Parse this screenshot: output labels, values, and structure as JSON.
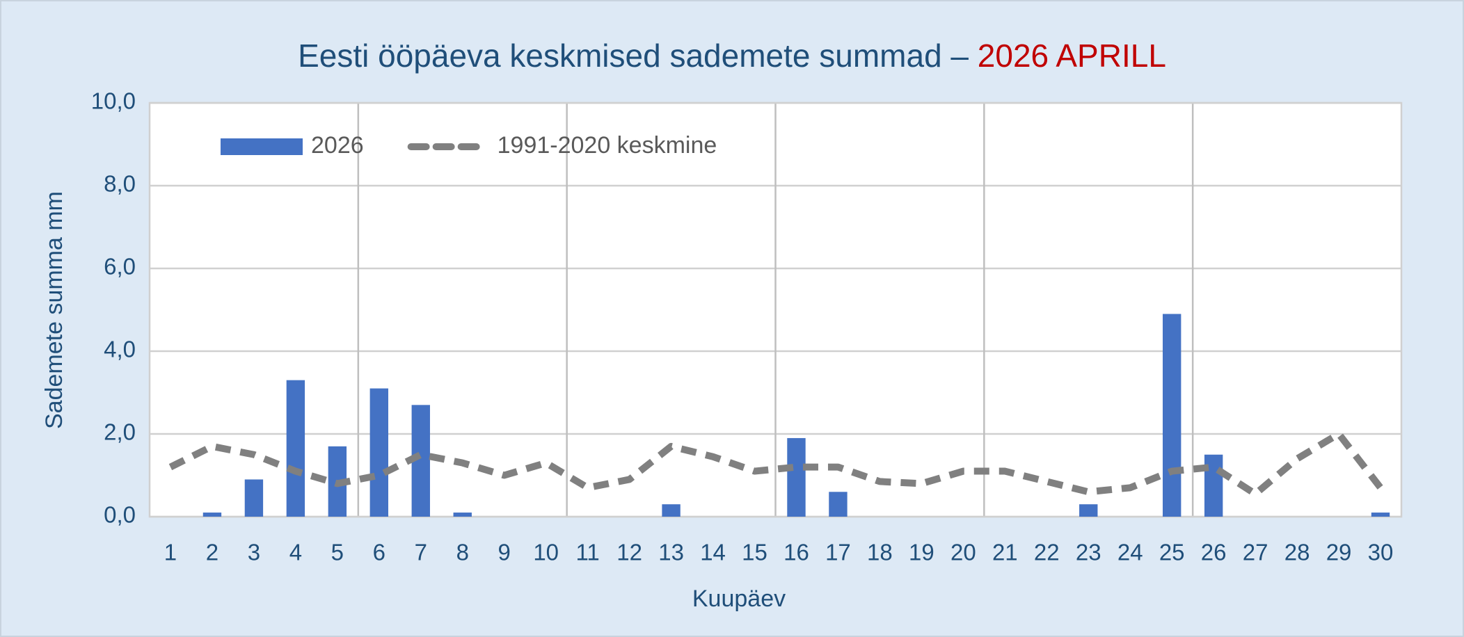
{
  "chart_data": {
    "type": "bar",
    "title": "Eesti ööpäeva keskmised sademete summad –",
    "title_highlight": "2026 APRILL",
    "x_label": "Kuupäev",
    "y_label": "Sademete summa mm",
    "categories": [
      "1",
      "2",
      "3",
      "4",
      "5",
      "6",
      "7",
      "8",
      "9",
      "10",
      "11",
      "12",
      "13",
      "14",
      "15",
      "16",
      "17",
      "18",
      "19",
      "20",
      "21",
      "22",
      "23",
      "24",
      "25",
      "26",
      "27",
      "28",
      "29",
      "30"
    ],
    "series": [
      {
        "name": "2026",
        "type": "bar",
        "color": "#4472c4",
        "values": [
          0,
          0.1,
          0.9,
          3.3,
          1.7,
          3.1,
          2.7,
          0.1,
          0,
          0,
          0,
          0,
          0.3,
          0,
          0,
          1.9,
          0.6,
          0,
          0,
          0,
          0,
          0,
          0.3,
          0,
          4.9,
          1.5,
          0,
          0,
          0,
          0.1
        ]
      },
      {
        "name": "1991-2020 keskmine",
        "type": "line",
        "color": "#808080",
        "values": [
          1.2,
          1.7,
          1.5,
          1.1,
          0.8,
          1.0,
          1.5,
          1.3,
          1.0,
          1.3,
          0.7,
          0.9,
          1.7,
          1.45,
          1.1,
          1.2,
          1.2,
          0.85,
          0.8,
          1.1,
          1.1,
          0.85,
          0.6,
          0.7,
          1.1,
          1.2,
          0.55,
          1.4,
          2.0,
          0.7
        ]
      }
    ],
    "ylim": [
      0,
      10
    ],
    "yticks": [
      {
        "value": 0,
        "label": "0,0"
      },
      {
        "value": 2,
        "label": "2,0"
      },
      {
        "value": 4,
        "label": "4,0"
      },
      {
        "value": 6,
        "label": "6,0"
      },
      {
        "value": 8,
        "label": "8,0"
      },
      {
        "value": 10,
        "label": "10,0"
      }
    ],
    "grid": true,
    "x_grid_every": 5,
    "legend": "top-left"
  }
}
